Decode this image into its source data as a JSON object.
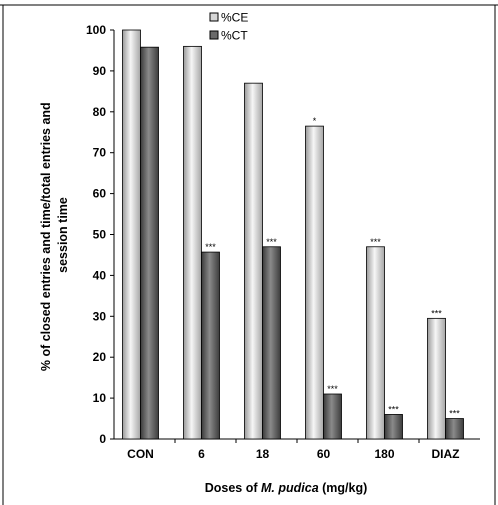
{
  "chart_data": {
    "type": "bar",
    "categories": [
      "CON",
      "6",
      "18",
      "60",
      "180",
      "DIAZ"
    ],
    "series": [
      {
        "name": "%CE",
        "values": [
          100,
          96,
          87,
          76.5,
          47,
          29.5
        ],
        "annotations": [
          "",
          "",
          "",
          "*",
          "***",
          "***"
        ],
        "color": "#d6d6d6"
      },
      {
        "name": "%CT",
        "values": [
          95.8,
          45.7,
          47,
          11,
          6,
          5
        ],
        "annotations": [
          "",
          "***",
          "***",
          "***",
          "***",
          "***"
        ],
        "color": "#6a6a6a"
      }
    ],
    "ylim": [
      0,
      100
    ],
    "yticks": [
      "0",
      "10",
      "20",
      "30",
      "40",
      "50",
      "60",
      "70",
      "80",
      "90",
      "100"
    ],
    "ylabel": [
      "% of closed entries and time/total entries and",
      "session time"
    ],
    "xlabel": {
      "prefix": "Doses of ",
      "italic": "M. pudica",
      "suffix": " (mg/kg)"
    },
    "legend_position": "top-right",
    "grid": false
  }
}
